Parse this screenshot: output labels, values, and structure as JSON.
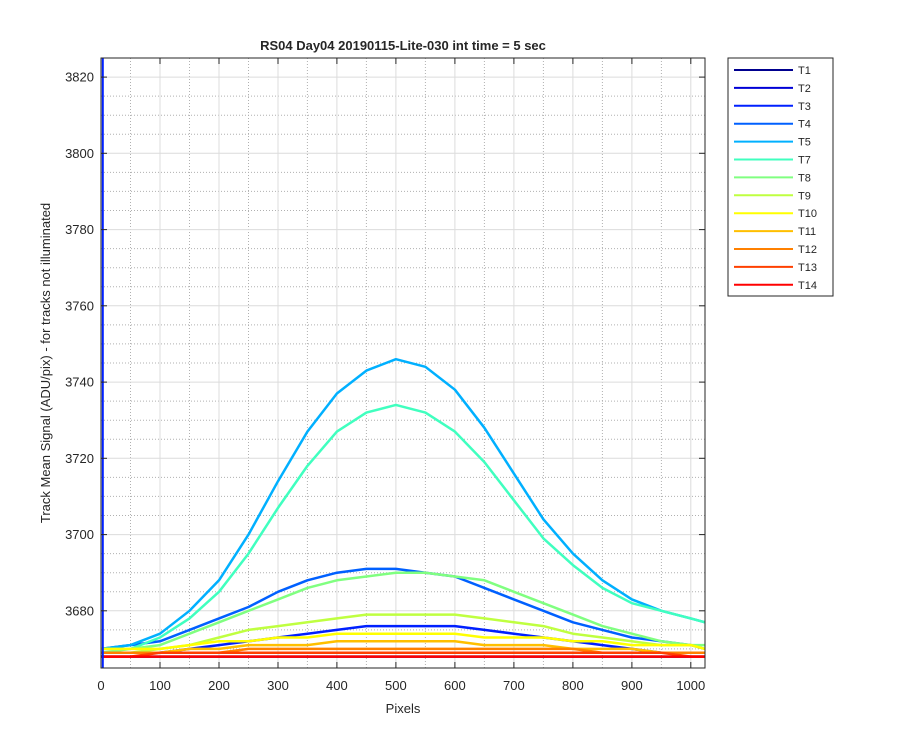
{
  "chart_data": {
    "type": "line",
    "title": "RS04 Day04 20190115-Lite-030 int time = 5 sec",
    "xlabel": "Pixels",
    "ylabel": "Track Mean Signal (ADU/pix) - for tracks not illuminated",
    "xlim": [
      0,
      1024
    ],
    "ylim": [
      3665,
      3825
    ],
    "x_ticks": [
      0,
      100,
      200,
      300,
      400,
      500,
      600,
      700,
      800,
      900,
      1000
    ],
    "y_ticks": [
      3680,
      3700,
      3720,
      3740,
      3760,
      3780,
      3800,
      3820
    ],
    "y_minor_ticks": [
      3670,
      3675,
      3685,
      3690,
      3695,
      3705,
      3710,
      3715,
      3725,
      3730,
      3735,
      3745,
      3750,
      3755,
      3765,
      3770,
      3775,
      3785,
      3790,
      3795,
      3805,
      3810,
      3815
    ],
    "grid": true,
    "minor_grid": true,
    "legend_position": "outside-right",
    "x": [
      0,
      50,
      100,
      150,
      200,
      250,
      300,
      350,
      400,
      450,
      500,
      550,
      600,
      650,
      700,
      750,
      800,
      850,
      900,
      950,
      1000,
      1024
    ],
    "series": [
      {
        "name": "T1",
        "color": "#00008f",
        "values": [
          3668,
          3668,
          3668,
          3668,
          3668,
          3668,
          3668,
          3668,
          3668,
          3668,
          3668,
          3668,
          3668,
          3668,
          3668,
          3668,
          3668,
          3668,
          3668,
          3668,
          3668,
          3668
        ]
      },
      {
        "name": "T2",
        "color": "#0000d6",
        "values": [
          3669,
          3669,
          3669,
          3669,
          3669,
          3669,
          3669,
          3669,
          3669,
          3669,
          3669,
          3669,
          3669,
          3669,
          3669,
          3669,
          3669,
          3669,
          3669,
          3669,
          3669,
          3669
        ]
      },
      {
        "name": "T3",
        "color": "#0020ff",
        "values": [
          3669,
          3669,
          3669,
          3670,
          3671,
          3672,
          3673,
          3674,
          3675,
          3676,
          3676,
          3676,
          3676,
          3675,
          3674,
          3673,
          3672,
          3671,
          3670,
          3669,
          3669,
          3669
        ]
      },
      {
        "name": "T4",
        "color": "#0060ff",
        "values": [
          3670,
          3671,
          3672,
          3675,
          3678,
          3681,
          3685,
          3688,
          3690,
          3691,
          3691,
          3690,
          3689,
          3686,
          3683,
          3680,
          3677,
          3675,
          3673,
          3672,
          3671,
          3670
        ]
      },
      {
        "name": "T5",
        "color": "#00b0ff",
        "values": [
          3670,
          3671,
          3674,
          3680,
          3688,
          3700,
          3714,
          3727,
          3737,
          3743,
          3746,
          3744,
          3738,
          3728,
          3716,
          3704,
          3695,
          3688,
          3683,
          3680,
          3678,
          3677
        ]
      },
      {
        "name": "T7",
        "color": "#40ffbf",
        "values": [
          3670,
          3670,
          3673,
          3678,
          3685,
          3695,
          3707,
          3718,
          3727,
          3732,
          3734,
          3732,
          3727,
          3719,
          3709,
          3699,
          3692,
          3686,
          3682,
          3680,
          3678,
          3677
        ]
      },
      {
        "name": "T8",
        "color": "#80ff80",
        "values": [
          3669,
          3670,
          3671,
          3674,
          3677,
          3680,
          3683,
          3686,
          3688,
          3689,
          3690,
          3690,
          3689,
          3688,
          3685,
          3682,
          3679,
          3676,
          3674,
          3672,
          3671,
          3671
        ]
      },
      {
        "name": "T9",
        "color": "#bfff40",
        "values": [
          3669,
          3669,
          3670,
          3671,
          3673,
          3675,
          3676,
          3677,
          3678,
          3679,
          3679,
          3679,
          3679,
          3678,
          3677,
          3676,
          3674,
          3673,
          3672,
          3671,
          3671,
          3670
        ]
      },
      {
        "name": "T10",
        "color": "#ffff00",
        "values": [
          3670,
          3670,
          3670,
          3671,
          3672,
          3672,
          3673,
          3673,
          3674,
          3674,
          3674,
          3674,
          3674,
          3673,
          3673,
          3673,
          3672,
          3672,
          3671,
          3671,
          3671,
          3670
        ]
      },
      {
        "name": "T11",
        "color": "#ffbf00",
        "values": [
          3669,
          3669,
          3669,
          3670,
          3670,
          3671,
          3671,
          3671,
          3672,
          3672,
          3672,
          3672,
          3672,
          3671,
          3671,
          3671,
          3670,
          3670,
          3670,
          3669,
          3669,
          3669
        ]
      },
      {
        "name": "T12",
        "color": "#ff8000",
        "values": [
          3669,
          3669,
          3669,
          3669,
          3669,
          3670,
          3670,
          3670,
          3670,
          3670,
          3670,
          3670,
          3670,
          3670,
          3670,
          3670,
          3670,
          3669,
          3669,
          3669,
          3669,
          3669
        ]
      },
      {
        "name": "T13",
        "color": "#ff4000",
        "values": [
          3668,
          3668,
          3669,
          3669,
          3669,
          3669,
          3669,
          3669,
          3669,
          3669,
          3669,
          3669,
          3669,
          3669,
          3669,
          3669,
          3669,
          3669,
          3669,
          3669,
          3668,
          3668
        ]
      },
      {
        "name": "T14",
        "color": "#ff0000",
        "values": [
          3668,
          3668,
          3668,
          3668,
          3668,
          3668,
          3668,
          3668,
          3668,
          3668,
          3668,
          3668,
          3668,
          3668,
          3668,
          3668,
          3668,
          3668,
          3668,
          3668,
          3668,
          3668
        ]
      }
    ],
    "annotations": [
      {
        "series": "T3",
        "description": "vertical spike at the left edge",
        "x": 3,
        "from": 3665,
        "to": 3825
      }
    ]
  }
}
